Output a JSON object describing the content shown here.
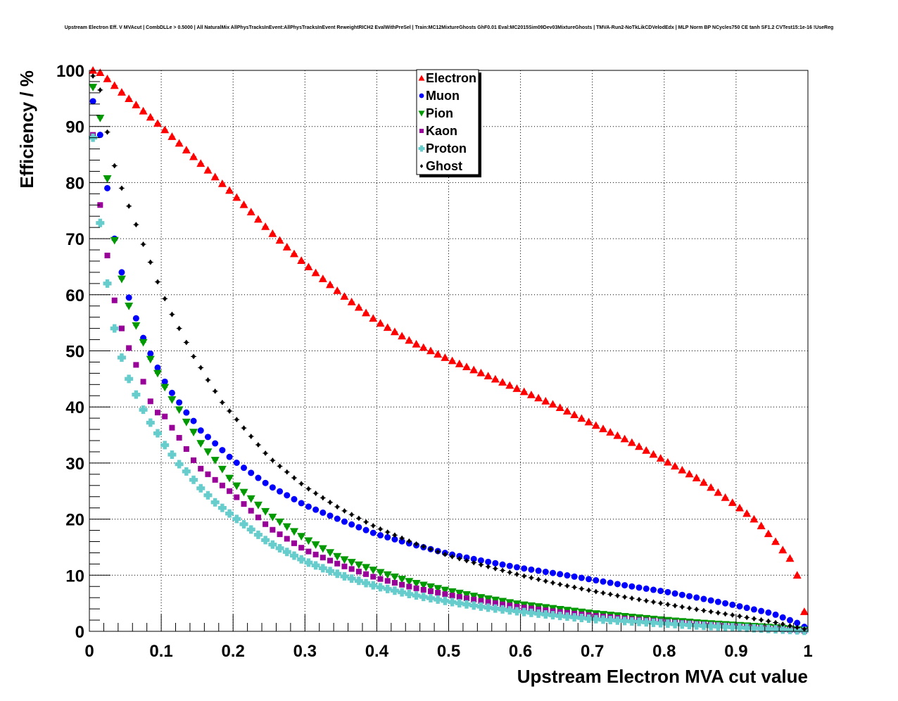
{
  "title": "Upstream Electron Eff. V MVAcut | CombDLLe > 0.5000 | All NaturalMix AllPhysTracksInEvent:AllPhysTracksInEvent ReweightRICH2 EvalWithPreSel | Train:MC12MixtureGhosts GhF0.01 Eval:MC2015Sim09Dev03MixtureGhosts | TMVA-Run2-NoTkLikCDVelodEdx | MLP Norm BP NCycles750 CE tanh SF1.2 CVTest15:1e-16 !UseReg",
  "chart_data": {
    "type": "scatter",
    "xlabel": "Upstream Electron MVA cut value",
    "ylabel": "Efficiency / %",
    "xlim": [
      0,
      1
    ],
    "ylim": [
      0,
      100
    ],
    "grid": true,
    "legend_position": "top-center",
    "x_ticks": [
      "0",
      "0.1",
      "0.2",
      "0.3",
      "0.4",
      "0.5",
      "0.6",
      "0.7",
      "0.8",
      "0.9",
      "1"
    ],
    "y_ticks": [
      "0",
      "10",
      "20",
      "30",
      "40",
      "50",
      "60",
      "70",
      "80",
      "90",
      "100"
    ],
    "x": [
      0.005,
      0.015,
      0.025,
      0.035,
      0.045,
      0.055,
      0.065,
      0.075,
      0.085,
      0.095,
      0.105,
      0.115,
      0.125,
      0.135,
      0.145,
      0.155,
      0.165,
      0.175,
      0.185,
      0.195,
      0.205,
      0.215,
      0.225,
      0.235,
      0.245,
      0.255,
      0.265,
      0.275,
      0.285,
      0.295,
      0.305,
      0.315,
      0.325,
      0.335,
      0.345,
      0.355,
      0.365,
      0.375,
      0.385,
      0.395,
      0.405,
      0.415,
      0.425,
      0.435,
      0.445,
      0.455,
      0.465,
      0.475,
      0.485,
      0.495,
      0.505,
      0.515,
      0.525,
      0.535,
      0.545,
      0.555,
      0.565,
      0.575,
      0.585,
      0.595,
      0.605,
      0.615,
      0.625,
      0.635,
      0.645,
      0.655,
      0.665,
      0.675,
      0.685,
      0.695,
      0.705,
      0.715,
      0.725,
      0.735,
      0.745,
      0.755,
      0.765,
      0.775,
      0.785,
      0.795,
      0.805,
      0.815,
      0.825,
      0.835,
      0.845,
      0.855,
      0.865,
      0.875,
      0.885,
      0.895,
      0.905,
      0.915,
      0.925,
      0.935,
      0.945,
      0.955,
      0.965,
      0.975,
      0.985,
      0.995
    ],
    "series": [
      {
        "name": "Electron",
        "color": "#ff0000",
        "marker": "triangle-up",
        "marker_size": 6,
        "anchors": [
          [
            0.005,
            100
          ],
          [
            0.015,
            99.6
          ],
          [
            0.025,
            98.5
          ],
          [
            0.05,
            95.5
          ],
          [
            0.1,
            90
          ],
          [
            0.15,
            84
          ],
          [
            0.2,
            78
          ],
          [
            0.25,
            71.5
          ],
          [
            0.3,
            65.5
          ],
          [
            0.35,
            60.2
          ],
          [
            0.4,
            55.3
          ],
          [
            0.45,
            51.5
          ],
          [
            0.5,
            48.5
          ],
          [
            0.55,
            45.8
          ],
          [
            0.6,
            43
          ],
          [
            0.65,
            40.2
          ],
          [
            0.7,
            37
          ],
          [
            0.75,
            34
          ],
          [
            0.8,
            30.5
          ],
          [
            0.85,
            27
          ],
          [
            0.9,
            22.5
          ],
          [
            0.93,
            19.5
          ],
          [
            0.955,
            16
          ],
          [
            0.975,
            13
          ],
          [
            0.985,
            10
          ],
          [
            0.995,
            3.5
          ]
        ]
      },
      {
        "name": "Muon",
        "color": "#0000ff",
        "marker": "circle",
        "marker_size": 4.5,
        "anchors": [
          [
            0.005,
            94.5
          ],
          [
            0.015,
            88.5
          ],
          [
            0.025,
            79
          ],
          [
            0.035,
            70
          ],
          [
            0.045,
            64
          ],
          [
            0.055,
            59.5
          ],
          [
            0.065,
            55.8
          ],
          [
            0.075,
            52.3
          ],
          [
            0.085,
            49.5
          ],
          [
            0.095,
            47
          ],
          [
            0.105,
            44.5
          ],
          [
            0.115,
            42.5
          ],
          [
            0.125,
            40.8
          ],
          [
            0.135,
            39
          ],
          [
            0.145,
            37.5
          ],
          [
            0.155,
            35.8
          ],
          [
            0.175,
            33.5
          ],
          [
            0.2,
            30.5
          ],
          [
            0.25,
            26
          ],
          [
            0.3,
            22.5
          ],
          [
            0.35,
            19.8
          ],
          [
            0.4,
            17.3
          ],
          [
            0.45,
            15.5
          ],
          [
            0.5,
            13.8
          ],
          [
            0.55,
            12.5
          ],
          [
            0.6,
            11.3
          ],
          [
            0.65,
            10.3
          ],
          [
            0.7,
            9.2
          ],
          [
            0.75,
            8.1
          ],
          [
            0.8,
            7.1
          ],
          [
            0.85,
            5.9
          ],
          [
            0.9,
            4.6
          ],
          [
            0.95,
            3.2
          ],
          [
            0.985,
            1.5
          ],
          [
            0.995,
            0.8
          ]
        ]
      },
      {
        "name": "Pion",
        "color": "#009900",
        "marker": "triangle-down",
        "marker_size": 6,
        "anchors": [
          [
            0.005,
            97
          ],
          [
            0.015,
            91.5
          ],
          [
            0.025,
            80.7
          ],
          [
            0.035,
            69.7
          ],
          [
            0.045,
            62.8
          ],
          [
            0.055,
            58
          ],
          [
            0.065,
            54.5
          ],
          [
            0.075,
            51.5
          ],
          [
            0.085,
            48.5
          ],
          [
            0.095,
            46
          ],
          [
            0.105,
            43.5
          ],
          [
            0.115,
            41.3
          ],
          [
            0.125,
            39.5
          ],
          [
            0.135,
            37.3
          ],
          [
            0.145,
            35.5
          ],
          [
            0.155,
            33.5
          ],
          [
            0.175,
            30.5
          ],
          [
            0.2,
            26.5
          ],
          [
            0.25,
            20.8
          ],
          [
            0.3,
            16.5
          ],
          [
            0.35,
            13
          ],
          [
            0.4,
            10.7
          ],
          [
            0.45,
            8.7
          ],
          [
            0.5,
            7.2
          ],
          [
            0.55,
            5.9
          ],
          [
            0.6,
            4.8
          ],
          [
            0.65,
            4
          ],
          [
            0.7,
            3.2
          ],
          [
            0.75,
            2.6
          ],
          [
            0.8,
            2
          ],
          [
            0.85,
            1.5
          ],
          [
            0.9,
            1.1
          ],
          [
            0.95,
            0.7
          ],
          [
            0.995,
            0.2
          ]
        ]
      },
      {
        "name": "Kaon",
        "color": "#990099",
        "marker": "square",
        "marker_size": 4,
        "anchors": [
          [
            0.005,
            88.5
          ],
          [
            0.015,
            76
          ],
          [
            0.025,
            67
          ],
          [
            0.035,
            59
          ],
          [
            0.045,
            54
          ],
          [
            0.055,
            50.5
          ],
          [
            0.065,
            47.5
          ],
          [
            0.075,
            44.5
          ],
          [
            0.085,
            41
          ],
          [
            0.095,
            39
          ],
          [
            0.105,
            38.3
          ],
          [
            0.115,
            36.3
          ],
          [
            0.125,
            34.5
          ],
          [
            0.135,
            32.5
          ],
          [
            0.145,
            30.5
          ],
          [
            0.155,
            29
          ],
          [
            0.175,
            27
          ],
          [
            0.2,
            24.5
          ],
          [
            0.25,
            18.5
          ],
          [
            0.3,
            14.5
          ],
          [
            0.35,
            11.8
          ],
          [
            0.4,
            9.5
          ],
          [
            0.45,
            7.8
          ],
          [
            0.5,
            6.5
          ],
          [
            0.55,
            5.3
          ],
          [
            0.6,
            4.3
          ],
          [
            0.65,
            3.5
          ],
          [
            0.7,
            2.8
          ],
          [
            0.75,
            2.2
          ],
          [
            0.8,
            1.7
          ],
          [
            0.85,
            1.3
          ],
          [
            0.9,
            0.9
          ],
          [
            0.95,
            0.5
          ],
          [
            0.995,
            0.1
          ]
        ]
      },
      {
        "name": "Proton",
        "color": "#66cccc",
        "marker": "plus",
        "marker_size": 6,
        "anchors": [
          [
            0.005,
            88
          ],
          [
            0.015,
            72.8
          ],
          [
            0.025,
            62
          ],
          [
            0.035,
            54
          ],
          [
            0.045,
            48.8
          ],
          [
            0.055,
            45
          ],
          [
            0.065,
            42.2
          ],
          [
            0.075,
            39.5
          ],
          [
            0.085,
            37.2
          ],
          [
            0.095,
            35.3
          ],
          [
            0.105,
            33.2
          ],
          [
            0.115,
            31.5
          ],
          [
            0.125,
            29.8
          ],
          [
            0.135,
            28.5
          ],
          [
            0.145,
            27
          ],
          [
            0.155,
            25.5
          ],
          [
            0.175,
            23
          ],
          [
            0.2,
            20.5
          ],
          [
            0.25,
            15.8
          ],
          [
            0.3,
            12.5
          ],
          [
            0.35,
            10
          ],
          [
            0.4,
            8
          ],
          [
            0.45,
            6.5
          ],
          [
            0.5,
            5.3
          ],
          [
            0.55,
            4.3
          ],
          [
            0.6,
            3.5
          ],
          [
            0.65,
            2.8
          ],
          [
            0.7,
            2.2
          ],
          [
            0.75,
            1.8
          ],
          [
            0.8,
            1.4
          ],
          [
            0.85,
            1
          ],
          [
            0.9,
            0.7
          ],
          [
            0.95,
            0.4
          ],
          [
            0.995,
            0.1
          ]
        ]
      },
      {
        "name": "Ghost",
        "color": "#000000",
        "marker": "diamond",
        "marker_size": 3,
        "anchors": [
          [
            0.005,
            99
          ],
          [
            0.015,
            96.5
          ],
          [
            0.025,
            89
          ],
          [
            0.035,
            83
          ],
          [
            0.045,
            79
          ],
          [
            0.055,
            75.8
          ],
          [
            0.065,
            72.5
          ],
          [
            0.075,
            69
          ],
          [
            0.085,
            65.8
          ],
          [
            0.095,
            62.3
          ],
          [
            0.105,
            59.3
          ],
          [
            0.115,
            56.5
          ],
          [
            0.125,
            54
          ],
          [
            0.135,
            51.5
          ],
          [
            0.145,
            49
          ],
          [
            0.155,
            47
          ],
          [
            0.165,
            44.8
          ],
          [
            0.175,
            42.8
          ],
          [
            0.185,
            40.8
          ],
          [
            0.2,
            38.5
          ],
          [
            0.25,
            31
          ],
          [
            0.3,
            25.8
          ],
          [
            0.35,
            21.8
          ],
          [
            0.4,
            18.5
          ],
          [
            0.45,
            15.8
          ],
          [
            0.5,
            13.5
          ],
          [
            0.55,
            11.7
          ],
          [
            0.6,
            10
          ],
          [
            0.65,
            8.5
          ],
          [
            0.7,
            7.2
          ],
          [
            0.75,
            6
          ],
          [
            0.8,
            4.9
          ],
          [
            0.85,
            3.8
          ],
          [
            0.9,
            2.8
          ],
          [
            0.95,
            1.7
          ],
          [
            0.995,
            0.4
          ]
        ]
      }
    ]
  }
}
